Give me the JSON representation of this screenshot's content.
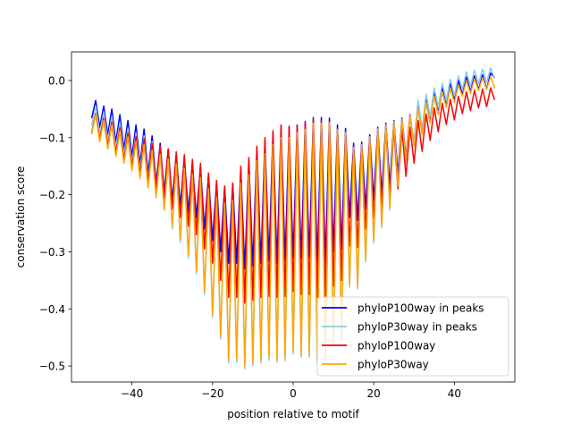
{
  "chart_data": {
    "type": "line",
    "title": "",
    "xlabel": "position relative to motif",
    "ylabel": "conservation score",
    "xlim": [
      -55,
      55
    ],
    "ylim": [
      -0.528,
      0.05
    ],
    "xticks": [
      -40,
      -20,
      0,
      20,
      40
    ],
    "xtick_labels": [
      "−40",
      "−20",
      "0",
      "20",
      "40"
    ],
    "yticks": [
      0.0,
      -0.1,
      -0.2,
      -0.3,
      -0.4,
      -0.5
    ],
    "ytick_labels": [
      "0.0",
      "−0.1",
      "−0.2",
      "−0.3",
      "−0.4",
      "−0.5"
    ],
    "grid": false,
    "legend_position": "lower-right",
    "x_range": [
      -50,
      50
    ],
    "series": [
      {
        "name": "phyloP100way in peaks",
        "color": "#0000ff",
        "values": [
          -0.066,
          -0.035,
          -0.082,
          -0.045,
          -0.095,
          -0.05,
          -0.108,
          -0.06,
          -0.12,
          -0.07,
          -0.133,
          -0.078,
          -0.147,
          -0.085,
          -0.163,
          -0.097,
          -0.18,
          -0.11,
          -0.195,
          -0.12,
          -0.21,
          -0.13,
          -0.22,
          -0.135,
          -0.23,
          -0.145,
          -0.24,
          -0.15,
          -0.26,
          -0.165,
          -0.28,
          -0.178,
          -0.3,
          -0.185,
          -0.32,
          -0.18,
          -0.32,
          -0.155,
          -0.33,
          -0.14,
          -0.325,
          -0.118,
          -0.32,
          -0.105,
          -0.315,
          -0.09,
          -0.32,
          -0.08,
          -0.315,
          -0.082,
          -0.31,
          -0.078,
          -0.312,
          -0.072,
          -0.31,
          -0.065,
          -0.318,
          -0.065,
          -0.318,
          -0.066,
          -0.3,
          -0.078,
          -0.295,
          -0.084,
          -0.24,
          -0.11,
          -0.245,
          -0.108,
          -0.225,
          -0.095,
          -0.21,
          -0.082,
          -0.2,
          -0.075,
          -0.185,
          -0.07,
          -0.165,
          -0.066,
          -0.135,
          -0.06,
          -0.112,
          -0.045,
          -0.092,
          -0.032,
          -0.072,
          -0.02,
          -0.057,
          -0.012,
          -0.045,
          -0.005,
          -0.035,
          0.0,
          -0.025,
          0.006,
          -0.02,
          0.008,
          -0.016,
          0.01,
          -0.015,
          0.013,
          0.005
        ]
      },
      {
        "name": "phyloP30way in peaks",
        "color": "#87ceeb",
        "values": [
          -0.079,
          -0.045,
          -0.092,
          -0.055,
          -0.105,
          -0.063,
          -0.118,
          -0.074,
          -0.13,
          -0.084,
          -0.143,
          -0.092,
          -0.157,
          -0.097,
          -0.173,
          -0.107,
          -0.19,
          -0.115,
          -0.215,
          -0.128,
          -0.26,
          -0.146,
          -0.284,
          -0.154,
          -0.311,
          -0.164,
          -0.339,
          -0.17,
          -0.375,
          -0.19,
          -0.415,
          -0.205,
          -0.453,
          -0.215,
          -0.495,
          -0.21,
          -0.494,
          -0.18,
          -0.505,
          -0.165,
          -0.5,
          -0.14,
          -0.495,
          -0.128,
          -0.49,
          -0.112,
          -0.494,
          -0.1,
          -0.491,
          -0.1,
          -0.479,
          -0.092,
          -0.485,
          -0.086,
          -0.485,
          -0.075,
          -0.495,
          -0.075,
          -0.495,
          -0.074,
          -0.465,
          -0.086,
          -0.455,
          -0.091,
          -0.362,
          -0.117,
          -0.365,
          -0.113,
          -0.318,
          -0.099,
          -0.285,
          -0.085,
          -0.258,
          -0.078,
          -0.227,
          -0.072,
          -0.19,
          -0.068,
          -0.145,
          -0.062,
          -0.105,
          -0.035,
          -0.084,
          -0.024,
          -0.063,
          -0.013,
          -0.047,
          -0.005,
          -0.035,
          0.002,
          -0.027,
          0.008,
          -0.015,
          0.015,
          -0.01,
          0.018,
          -0.005,
          0.02,
          -0.003,
          0.022,
          0.003
        ]
      },
      {
        "name": "phyloP100way",
        "color": "#ff0000",
        "values": [
          -0.092,
          -0.058,
          -0.103,
          -0.066,
          -0.115,
          -0.073,
          -0.128,
          -0.083,
          -0.14,
          -0.092,
          -0.152,
          -0.098,
          -0.165,
          -0.102,
          -0.178,
          -0.11,
          -0.19,
          -0.115,
          -0.205,
          -0.12,
          -0.225,
          -0.125,
          -0.24,
          -0.13,
          -0.255,
          -0.138,
          -0.27,
          -0.145,
          -0.295,
          -0.162,
          -0.32,
          -0.175,
          -0.35,
          -0.185,
          -0.38,
          -0.18,
          -0.38,
          -0.15,
          -0.39,
          -0.135,
          -0.385,
          -0.115,
          -0.38,
          -0.1,
          -0.378,
          -0.088,
          -0.38,
          -0.078,
          -0.378,
          -0.08,
          -0.37,
          -0.078,
          -0.375,
          -0.075,
          -0.375,
          -0.068,
          -0.38,
          -0.07,
          -0.38,
          -0.072,
          -0.36,
          -0.085,
          -0.35,
          -0.092,
          -0.29,
          -0.118,
          -0.292,
          -0.115,
          -0.26,
          -0.102,
          -0.24,
          -0.09,
          -0.225,
          -0.085,
          -0.205,
          -0.085,
          -0.19,
          -0.085,
          -0.168,
          -0.082,
          -0.145,
          -0.07,
          -0.124,
          -0.059,
          -0.105,
          -0.048,
          -0.09,
          -0.04,
          -0.077,
          -0.033,
          -0.069,
          -0.028,
          -0.058,
          -0.02,
          -0.053,
          -0.017,
          -0.048,
          -0.015,
          -0.046,
          -0.013,
          -0.034
        ]
      },
      {
        "name": "phyloP30way",
        "color": "#ffa500",
        "values": [
          -0.094,
          -0.06,
          -0.107,
          -0.07,
          -0.12,
          -0.078,
          -0.133,
          -0.089,
          -0.145,
          -0.099,
          -0.158,
          -0.107,
          -0.172,
          -0.112,
          -0.188,
          -0.122,
          -0.205,
          -0.13,
          -0.227,
          -0.138,
          -0.255,
          -0.146,
          -0.279,
          -0.154,
          -0.306,
          -0.164,
          -0.334,
          -0.17,
          -0.37,
          -0.19,
          -0.41,
          -0.205,
          -0.448,
          -0.215,
          -0.49,
          -0.21,
          -0.489,
          -0.18,
          -0.5,
          -0.165,
          -0.495,
          -0.14,
          -0.49,
          -0.128,
          -0.485,
          -0.112,
          -0.489,
          -0.1,
          -0.486,
          -0.1,
          -0.474,
          -0.092,
          -0.48,
          -0.086,
          -0.48,
          -0.075,
          -0.49,
          -0.075,
          -0.49,
          -0.074,
          -0.46,
          -0.086,
          -0.45,
          -0.091,
          -0.357,
          -0.117,
          -0.36,
          -0.113,
          -0.313,
          -0.099,
          -0.28,
          -0.085,
          -0.253,
          -0.078,
          -0.222,
          -0.072,
          -0.185,
          -0.068,
          -0.14,
          -0.062,
          -0.115,
          -0.05,
          -0.094,
          -0.039,
          -0.075,
          -0.028,
          -0.06,
          -0.02,
          -0.047,
          -0.013,
          -0.039,
          -0.008,
          -0.028,
          0.0,
          -0.023,
          0.003,
          -0.018,
          0.005,
          -0.016,
          0.007,
          -0.014
        ]
      }
    ]
  }
}
